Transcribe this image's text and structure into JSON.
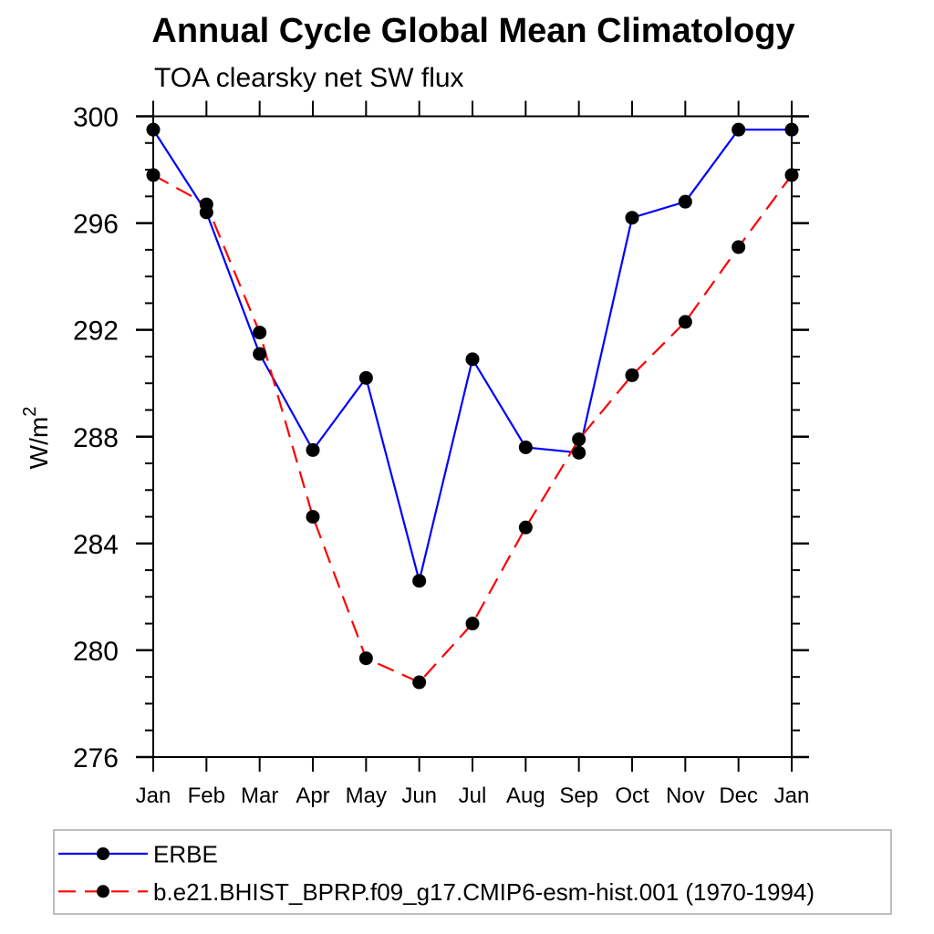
{
  "chart_data": {
    "type": "line",
    "title": "Annual Cycle Global Mean Climatology",
    "subtitle": "TOA clearsky net SW flux",
    "ylabel": "W/m^2",
    "ylabel_base": "W/m",
    "ylabel_exp": "2",
    "x_categories": [
      "Jan",
      "Feb",
      "Mar",
      "Apr",
      "May",
      "Jun",
      "Jul",
      "Aug",
      "Sep",
      "Oct",
      "Nov",
      "Dec",
      "Jan"
    ],
    "ylim": [
      276,
      300
    ],
    "ytick_major_step": 4,
    "ytick_minor_step": 1,
    "grid": false,
    "legend_position": "bottom-left-box",
    "marker": "filled-circle",
    "marker_color": "#000000",
    "axis_color": "#000000",
    "legend_border_color": "#a9a9a9",
    "series": [
      {
        "id": "erbe",
        "name": "ERBE",
        "color": "#0000ff",
        "line_style": "solid",
        "values": [
          299.5,
          296.4,
          291.1,
          287.5,
          290.2,
          282.6,
          290.9,
          287.6,
          287.4,
          296.2,
          296.8,
          299.5,
          299.5
        ]
      },
      {
        "id": "model",
        "name": "b.e21.BHIST_BPRP.f09_g17.CMIP6-esm-hist.001 (1970-1994)",
        "color": "#ff0000",
        "line_style": "dashed",
        "values": [
          297.8,
          296.7,
          291.9,
          285.0,
          279.7,
          278.8,
          281.0,
          284.6,
          287.9,
          290.3,
          292.3,
          295.1,
          297.8
        ]
      }
    ]
  }
}
